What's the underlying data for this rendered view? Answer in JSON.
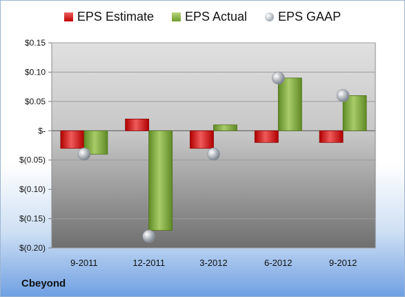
{
  "chart_data": {
    "type": "bar",
    "categories": [
      "9-2011",
      "12-2011",
      "3-2012",
      "6-2012",
      "9-2012"
    ],
    "series": [
      {
        "name": "EPS Estimate",
        "values": [
          -0.03,
          0.02,
          -0.03,
          -0.02,
          -0.02
        ],
        "color": "#c00000"
      },
      {
        "name": "EPS Actual",
        "values": [
          -0.04,
          -0.17,
          0.01,
          0.09,
          0.06
        ],
        "color": "#77a33a"
      },
      {
        "name": "EPS GAAP",
        "values": [
          -0.04,
          -0.18,
          -0.04,
          0.09,
          0.06
        ],
        "color": "#a0a6ae",
        "marker": "sphere"
      }
    ],
    "yticks": [
      {
        "v": 0.15,
        "label": "$0.15"
      },
      {
        "v": 0.1,
        "label": "$0.10"
      },
      {
        "v": 0.05,
        "label": "$0.05"
      },
      {
        "v": 0,
        "label": "$-"
      },
      {
        "v": -0.05,
        "label": "$(0.05)"
      },
      {
        "v": -0.1,
        "label": "$(0.10)"
      },
      {
        "v": -0.15,
        "label": "$(0.15)"
      },
      {
        "v": -0.2,
        "label": "$(0.20)"
      }
    ],
    "ylim": [
      -0.2,
      0.15
    ],
    "legend_position": "top",
    "grid": true
  },
  "legend": {
    "estimate": "EPS Estimate",
    "actual": "EPS Actual",
    "gaap": "EPS GAAP"
  },
  "company": "Cbeyond"
}
